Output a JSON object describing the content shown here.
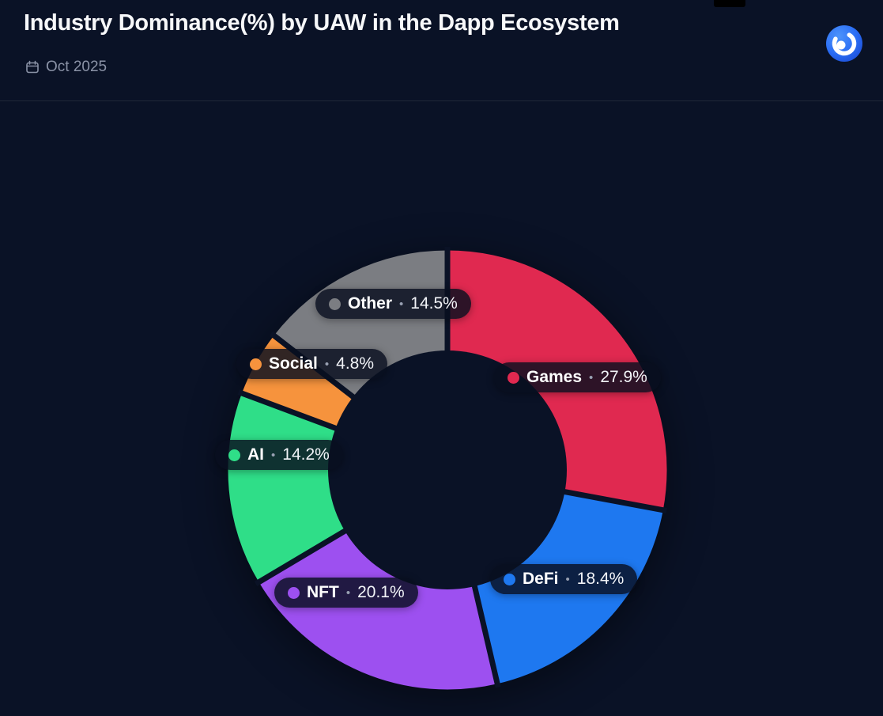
{
  "header": {
    "title": "Industry Dominance(%) by UAW in the Dapp Ecosystem",
    "date_label": "Oct 2025"
  },
  "chart_data": {
    "type": "pie",
    "variant": "donut",
    "title": "Industry Dominance(%) by UAW in the Dapp Ecosystem",
    "period": "Oct 2025",
    "unit": "%",
    "separator": "•",
    "direction": "clockwise",
    "start_angle_deg": 0,
    "legend_position": "labels-on-chart",
    "background_color": "#0A1226",
    "slices": [
      {
        "label": "Games",
        "value": 27.9,
        "value_label": "27.9%",
        "color": "#E02950"
      },
      {
        "label": "DeFi",
        "value": 18.4,
        "value_label": "18.4%",
        "color": "#1E78F0"
      },
      {
        "label": "NFT",
        "value": 20.1,
        "value_label": "20.1%",
        "color": "#9D50F0"
      },
      {
        "label": "AI",
        "value": 14.2,
        "value_label": "14.2%",
        "color": "#2FDE88"
      },
      {
        "label": "Social",
        "value": 4.8,
        "value_label": "4.8%",
        "color": "#F6933D"
      },
      {
        "label": "Other",
        "value": 14.5,
        "value_label": "14.5%",
        "color": "#7B7D82"
      }
    ]
  }
}
